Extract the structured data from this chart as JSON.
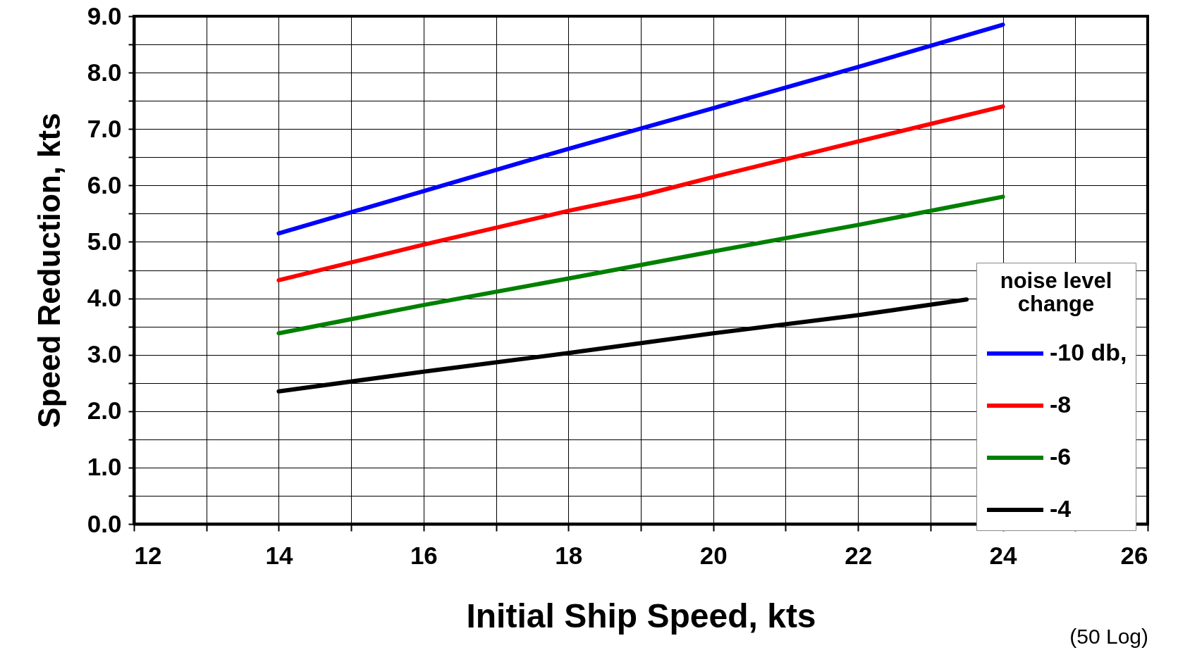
{
  "chart_data": {
    "type": "line",
    "xlabel": "Initial Ship Speed, kts",
    "ylabel": "Speed Reduction, kts",
    "legend_title": "noise level change",
    "annotations": [
      "(50 Log)"
    ],
    "series": [
      {
        "name": "-10 db,",
        "color": "#0000ff",
        "x": [
          14,
          16,
          18,
          20,
          22,
          24
        ],
        "values": [
          5.15,
          5.9,
          6.65,
          7.37,
          8.1,
          8.85
        ]
      },
      {
        "name": "-8",
        "color": "#ff0000",
        "x": [
          14,
          16,
          18,
          19,
          20,
          22,
          24
        ],
        "values": [
          4.32,
          4.95,
          5.55,
          5.82,
          6.15,
          6.78,
          7.4
        ]
      },
      {
        "name": "-6",
        "color": "#008000",
        "x": [
          14,
          16,
          18,
          20,
          22,
          24
        ],
        "values": [
          3.38,
          3.88,
          4.35,
          4.83,
          5.3,
          5.8
        ]
      },
      {
        "name": "-4",
        "color": "#000000",
        "x": [
          14,
          16,
          18,
          20,
          22,
          23.5
        ],
        "values": [
          2.35,
          2.7,
          3.03,
          3.38,
          3.7,
          3.98
        ]
      }
    ],
    "xlim": [
      12,
      26
    ],
    "ylim": [
      0,
      9
    ],
    "xticks": [
      12,
      {
        "value": 13,
        "label": null
      },
      14,
      {
        "value": 15,
        "label": null
      },
      16,
      {
        "value": 17,
        "label": null
      },
      18,
      {
        "value": 19,
        "label": null
      },
      20,
      {
        "value": 21,
        "label": null
      },
      22,
      {
        "value": 23,
        "label": null
      },
      24,
      {
        "value": 25,
        "label": null
      },
      26
    ],
    "yticks": [
      {
        "value": 0,
        "label": "0.0"
      },
      {
        "value": 0.5,
        "label": null
      },
      {
        "value": 1,
        "label": "1.0"
      },
      {
        "value": 1.5,
        "label": null
      },
      {
        "value": 2,
        "label": "2.0"
      },
      {
        "value": 2.5,
        "label": null
      },
      {
        "value": 3,
        "label": "3.0"
      },
      {
        "value": 3.5,
        "label": null
      },
      {
        "value": 4,
        "label": "4.0"
      },
      {
        "value": 4.5,
        "label": null
      },
      {
        "value": 5,
        "label": "5.0"
      },
      {
        "value": 5.5,
        "label": null
      },
      {
        "value": 6,
        "label": "6.0"
      },
      {
        "value": 6.5,
        "label": null
      },
      {
        "value": 7,
        "label": "7.0"
      },
      {
        "value": 7.5,
        "label": null
      },
      {
        "value": 8,
        "label": "8.0"
      },
      {
        "value": 8.5,
        "label": null
      },
      {
        "value": 9,
        "label": "9.0"
      }
    ],
    "grid": true,
    "legend": "right",
    "marker": "none",
    "line_style": "solid"
  }
}
